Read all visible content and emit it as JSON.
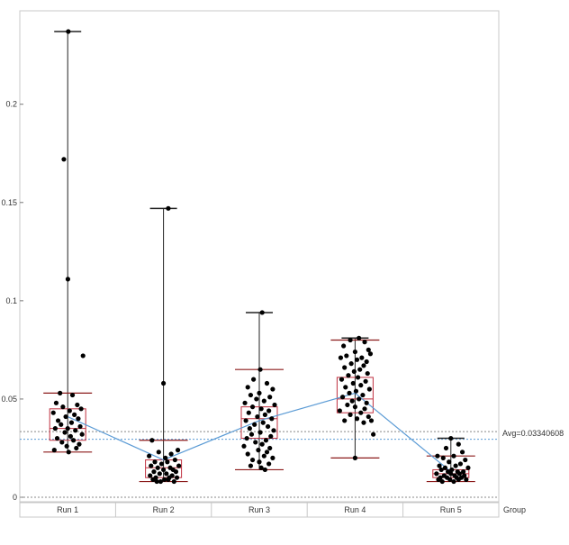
{
  "chart_data": {
    "type": "box",
    "xlabel": "Group",
    "ylabel": "",
    "ylim": [
      -0.001,
      0.245
    ],
    "yticks": [
      0,
      0.05,
      0.1,
      0.15,
      0.2
    ],
    "ytick_labels": [
      "0",
      "0.05",
      "0.1",
      "0.15",
      "0.2"
    ],
    "categories": [
      "Run 1",
      "Run 2",
      "Run 3",
      "Run 4",
      "Run 5"
    ],
    "grid": false,
    "colors": {
      "box": "#c0303f",
      "whisker": "#222222",
      "cap": "#8b1a1a",
      "point": "#000000",
      "mean_line": "#5b9bd5",
      "avg_line": "#888888",
      "ref_line": "#5b9bd5"
    },
    "boxes": [
      {
        "name": "Run 1",
        "min": 0.023,
        "q1": 0.029,
        "median": 0.035,
        "q3": 0.045,
        "max": 0.237,
        "whisker_high": 0.053,
        "mean": 0.041
      },
      {
        "name": "Run 2",
        "min": 0.008,
        "q1": 0.01,
        "median": 0.015,
        "q3": 0.019,
        "max": 0.147,
        "whisker_high": 0.029,
        "mean": 0.019
      },
      {
        "name": "Run 3",
        "min": 0.014,
        "q1": 0.03,
        "median": 0.04,
        "q3": 0.046,
        "max": 0.094,
        "whisker_high": 0.065,
        "mean": 0.039
      },
      {
        "name": "Run 4",
        "min": 0.02,
        "q1": 0.043,
        "median": 0.05,
        "q3": 0.061,
        "max": 0.081,
        "whisker_high": 0.08,
        "mean": 0.053
      },
      {
        "name": "Run 5",
        "min": 0.008,
        "q1": 0.01,
        "median": 0.012,
        "q3": 0.014,
        "max": 0.03,
        "whisker_high": 0.021,
        "mean": 0.013
      }
    ],
    "points": [
      [
        [
          0.006,
          0.237
        ],
        [
          -0.04,
          0.172
        ],
        [
          0.002,
          0.111
        ],
        [
          0.16,
          0.072
        ],
        [
          -0.08,
          0.053
        ],
        [
          0.05,
          0.052
        ],
        [
          -0.12,
          0.048
        ],
        [
          0.1,
          0.047
        ],
        [
          -0.05,
          0.046
        ],
        [
          0.14,
          0.045
        ],
        [
          0.02,
          0.044
        ],
        [
          -0.15,
          0.043
        ],
        [
          0.07,
          0.042
        ],
        [
          -0.02,
          0.041
        ],
        [
          0.11,
          0.04
        ],
        [
          -0.1,
          0.039
        ],
        [
          0.04,
          0.038
        ],
        [
          -0.07,
          0.037
        ],
        [
          0.13,
          0.036
        ],
        [
          0.0,
          0.035
        ],
        [
          -0.13,
          0.035
        ],
        [
          0.08,
          0.034
        ],
        [
          -0.03,
          0.033
        ],
        [
          0.15,
          0.032
        ],
        [
          0.03,
          0.031
        ],
        [
          -0.11,
          0.03
        ],
        [
          0.06,
          0.029
        ],
        [
          -0.06,
          0.028
        ],
        [
          0.12,
          0.027
        ],
        [
          -0.01,
          0.026
        ],
        [
          0.09,
          0.025
        ],
        [
          -0.14,
          0.024
        ],
        [
          0.01,
          0.023
        ]
      ],
      [
        [
          0.05,
          0.147
        ],
        [
          0.0,
          0.058
        ],
        [
          -0.12,
          0.029
        ],
        [
          0.15,
          0.024
        ],
        [
          -0.05,
          0.023
        ],
        [
          0.08,
          0.022
        ],
        [
          -0.15,
          0.021
        ],
        [
          0.02,
          0.02
        ],
        [
          0.12,
          0.019
        ],
        [
          -0.09,
          0.018
        ],
        [
          0.04,
          0.018
        ],
        [
          -0.02,
          0.017
        ],
        [
          0.16,
          0.016
        ],
        [
          -0.13,
          0.016
        ],
        [
          0.07,
          0.015
        ],
        [
          -0.06,
          0.015
        ],
        [
          0.1,
          0.014
        ],
        [
          0.0,
          0.014
        ],
        [
          -0.1,
          0.013
        ],
        [
          0.13,
          0.013
        ],
        [
          0.03,
          0.012
        ],
        [
          -0.04,
          0.012
        ],
        [
          0.09,
          0.011
        ],
        [
          -0.14,
          0.011
        ],
        [
          0.06,
          0.01
        ],
        [
          -0.08,
          0.01
        ],
        [
          0.14,
          0.01
        ],
        [
          0.01,
          0.009
        ],
        [
          -0.11,
          0.009
        ],
        [
          0.05,
          0.009
        ],
        [
          -0.03,
          0.008
        ],
        [
          0.11,
          0.008
        ],
        [
          -0.07,
          0.008
        ]
      ],
      [
        [
          0.03,
          0.094
        ],
        [
          0.01,
          0.065
        ],
        [
          -0.06,
          0.06
        ],
        [
          0.08,
          0.058
        ],
        [
          -0.12,
          0.056
        ],
        [
          0.14,
          0.055
        ],
        [
          0.0,
          0.053
        ],
        [
          -0.09,
          0.052
        ],
        [
          0.11,
          0.051
        ],
        [
          -0.03,
          0.05
        ],
        [
          0.05,
          0.049
        ],
        [
          -0.15,
          0.048
        ],
        [
          0.16,
          0.047
        ],
        [
          -0.07,
          0.046
        ],
        [
          0.02,
          0.045
        ],
        [
          0.1,
          0.044
        ],
        [
          -0.11,
          0.043
        ],
        [
          0.06,
          0.042
        ],
        [
          -0.02,
          0.041
        ],
        [
          0.13,
          0.04
        ],
        [
          -0.14,
          0.039
        ],
        [
          0.04,
          0.038
        ],
        [
          -0.05,
          0.037
        ],
        [
          0.09,
          0.036
        ],
        [
          -0.1,
          0.035
        ],
        [
          0.15,
          0.034
        ],
        [
          0.01,
          0.033
        ],
        [
          -0.08,
          0.032
        ],
        [
          0.12,
          0.031
        ],
        [
          -0.13,
          0.03
        ],
        [
          0.07,
          0.029
        ],
        [
          -0.04,
          0.028
        ],
        [
          0.03,
          0.027
        ],
        [
          -0.16,
          0.026
        ],
        [
          0.11,
          0.025
        ],
        [
          -0.01,
          0.024
        ],
        [
          0.08,
          0.023
        ],
        [
          -0.12,
          0.022
        ],
        [
          0.05,
          0.021
        ],
        [
          0.14,
          0.02
        ],
        [
          -0.07,
          0.019
        ],
        [
          0.0,
          0.018
        ],
        [
          0.1,
          0.017
        ],
        [
          -0.09,
          0.016
        ],
        [
          0.02,
          0.015
        ],
        [
          0.06,
          0.014
        ]
      ],
      [
        [
          0.04,
          0.081
        ],
        [
          -0.05,
          0.08
        ],
        [
          0.1,
          0.079
        ],
        [
          -0.12,
          0.077
        ],
        [
          0.14,
          0.075
        ],
        [
          0.0,
          0.074
        ],
        [
          0.16,
          0.073
        ],
        [
          -0.09,
          0.072
        ],
        [
          0.07,
          0.071
        ],
        [
          -0.15,
          0.071
        ],
        [
          0.02,
          0.07
        ],
        [
          0.12,
          0.069
        ],
        [
          -0.04,
          0.068
        ],
        [
          0.09,
          0.067
        ],
        [
          -0.11,
          0.066
        ],
        [
          0.05,
          0.065
        ],
        [
          -0.01,
          0.064
        ],
        [
          0.13,
          0.063
        ],
        [
          -0.07,
          0.062
        ],
        [
          0.03,
          0.061
        ],
        [
          -0.14,
          0.06
        ],
        [
          0.11,
          0.059
        ],
        [
          -0.02,
          0.058
        ],
        [
          0.06,
          0.057
        ],
        [
          -0.1,
          0.056
        ],
        [
          0.15,
          0.055
        ],
        [
          0.01,
          0.054
        ],
        [
          -0.06,
          0.053
        ],
        [
          0.08,
          0.052
        ],
        [
          -0.13,
          0.051
        ],
        [
          0.04,
          0.05
        ],
        [
          -0.03,
          0.049
        ],
        [
          0.12,
          0.048
        ],
        [
          -0.08,
          0.047
        ],
        [
          0.0,
          0.046
        ],
        [
          0.1,
          0.045
        ],
        [
          -0.16,
          0.044
        ],
        [
          0.06,
          0.043
        ],
        [
          -0.05,
          0.042
        ],
        [
          0.14,
          0.041
        ],
        [
          0.02,
          0.04
        ],
        [
          0.17,
          0.039
        ],
        [
          -0.11,
          0.039
        ],
        [
          0.09,
          0.038
        ],
        [
          0.19,
          0.032
        ],
        [
          0.0,
          0.02
        ]
      ],
      [
        [
          0.0,
          0.03
        ],
        [
          0.08,
          0.027
        ],
        [
          -0.05,
          0.025
        ],
        [
          0.12,
          0.023
        ],
        [
          -0.14,
          0.021
        ],
        [
          0.03,
          0.021
        ],
        [
          -0.08,
          0.02
        ],
        [
          0.15,
          0.019
        ],
        [
          -0.02,
          0.018
        ],
        [
          0.1,
          0.017
        ],
        [
          -0.12,
          0.016
        ],
        [
          0.05,
          0.016
        ],
        [
          -0.06,
          0.015
        ],
        [
          0.18,
          0.015
        ],
        [
          0.01,
          0.014
        ],
        [
          -0.1,
          0.014
        ],
        [
          0.13,
          0.013
        ],
        [
          -0.03,
          0.013
        ],
        [
          0.07,
          0.013
        ],
        [
          -0.15,
          0.012
        ],
        [
          0.09,
          0.012
        ],
        [
          0.0,
          0.012
        ],
        [
          -0.07,
          0.011
        ],
        [
          0.14,
          0.011
        ],
        [
          0.04,
          0.011
        ],
        [
          -0.11,
          0.01
        ],
        [
          0.11,
          0.01
        ],
        [
          -0.04,
          0.01
        ],
        [
          0.06,
          0.01
        ],
        [
          -0.13,
          0.009
        ],
        [
          0.16,
          0.009
        ],
        [
          -0.01,
          0.009
        ],
        [
          0.08,
          0.009
        ],
        [
          -0.09,
          0.008
        ],
        [
          0.03,
          0.008
        ]
      ]
    ],
    "avg_line": {
      "value": 0.0334,
      "label": "Avg=0.03340608"
    },
    "ref_line": {
      "value": 0.0295
    },
    "zero_line": {
      "value": 0
    }
  }
}
